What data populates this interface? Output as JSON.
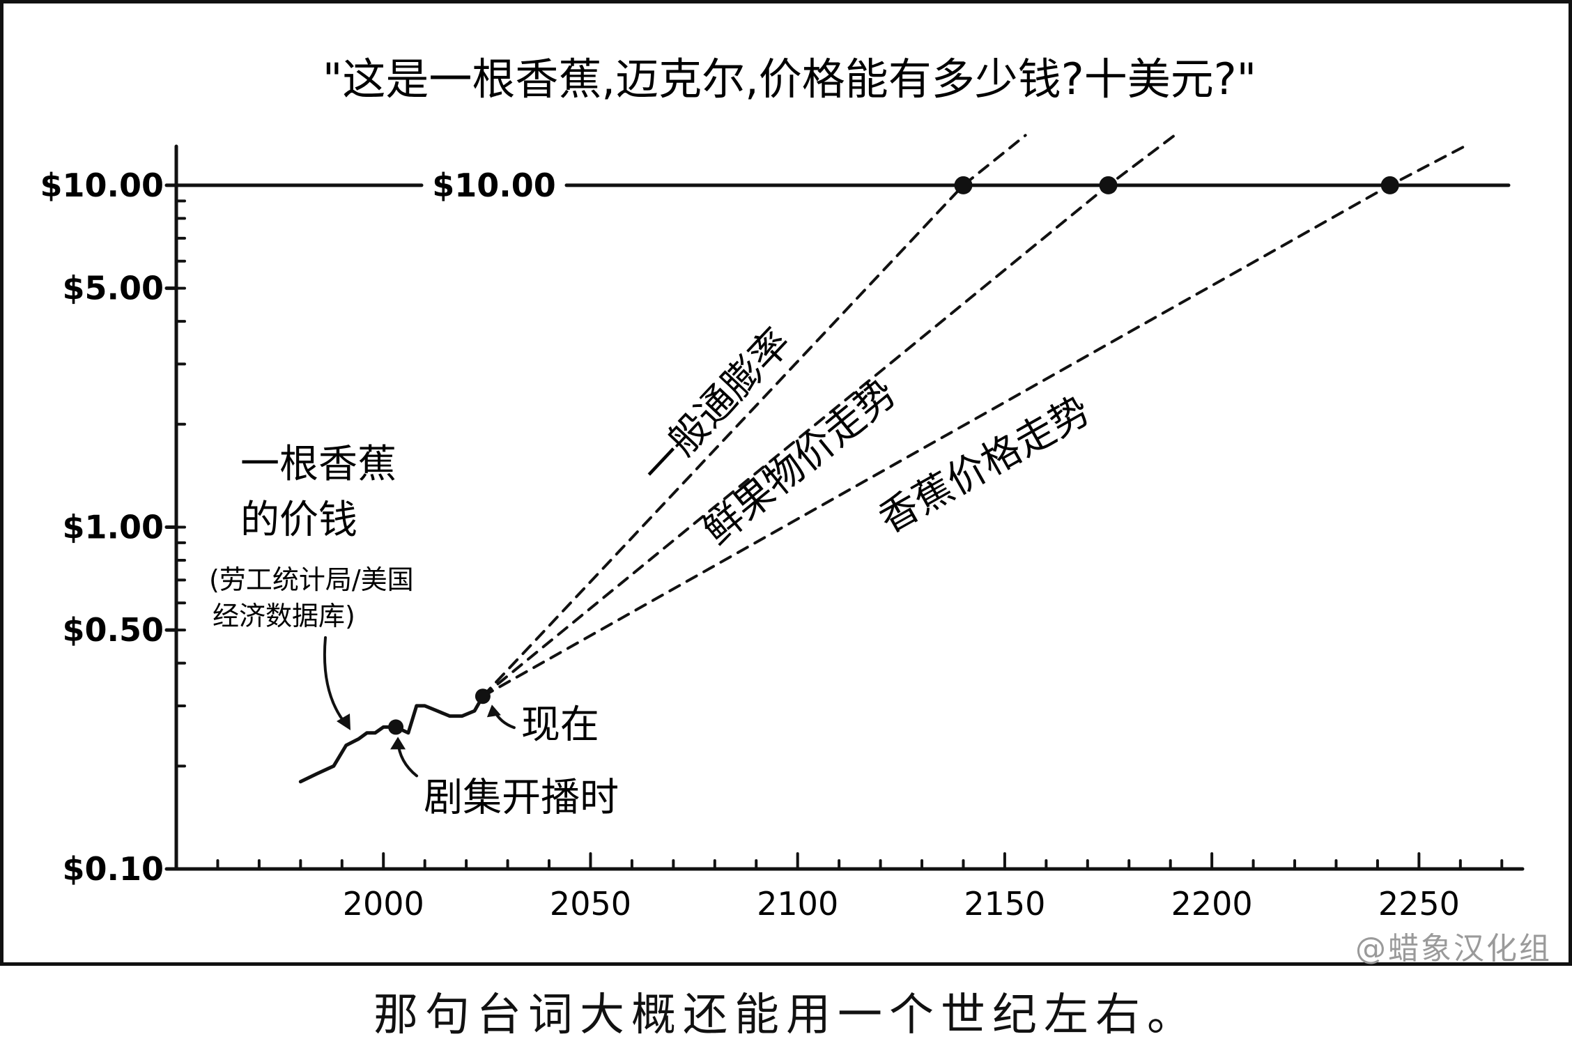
{
  "chart_data": {
    "type": "line",
    "title": "\"这是一根香蕉,迈克尔,价格能有多少钱?十美元?\"",
    "y_scale": "log",
    "ylim": [
      0.1,
      13
    ],
    "xlim": [
      1950,
      2275
    ],
    "x_ticks": [
      2000,
      2050,
      2100,
      2150,
      2200,
      2250
    ],
    "y_ticks": [
      {
        "value": 10,
        "label": "$10.00"
      },
      {
        "value": 5,
        "label": "$5.00"
      },
      {
        "value": 1,
        "label": "$1.00"
      },
      {
        "value": 0.5,
        "label": "$0.50"
      },
      {
        "value": 0.1,
        "label": "$0.10"
      }
    ],
    "grid": false,
    "reference_line": {
      "value": 10,
      "label": "$10.00"
    },
    "history": {
      "name_line1": "一根香蕉",
      "name_line2": "的价钱",
      "source_line1": "(劳工统计局/美国",
      "source_line2": "经济数据库)",
      "x": [
        1980,
        1984,
        1988,
        1991,
        1994,
        1996,
        1998,
        2000,
        2003,
        2006,
        2008,
        2010,
        2013,
        2016,
        2019,
        2022,
        2024
      ],
      "y": [
        0.18,
        0.19,
        0.2,
        0.23,
        0.24,
        0.25,
        0.25,
        0.26,
        0.26,
        0.25,
        0.3,
        0.3,
        0.29,
        0.28,
        0.28,
        0.29,
        0.32
      ]
    },
    "markers": [
      {
        "x": 2003,
        "y": 0.26,
        "label": "剧集开播时"
      },
      {
        "x": 2024,
        "y": 0.32,
        "label": "现在"
      }
    ],
    "series": [
      {
        "name": "一般通膨率",
        "x": [
          2024,
          2140,
          2155
        ],
        "y": [
          0.32,
          10,
          14
        ]
      },
      {
        "name": "鲜果物价走势",
        "x": [
          2024,
          2175,
          2191
        ],
        "y": [
          0.32,
          10,
          14
        ]
      },
      {
        "name": "香蕉价格走势",
        "x": [
          2024,
          2243,
          2261
        ],
        "y": [
          0.32,
          10,
          13
        ]
      }
    ],
    "intersections": [
      {
        "x": 2140,
        "y": 10
      },
      {
        "x": 2175,
        "y": 10
      },
      {
        "x": 2243,
        "y": 10
      }
    ]
  },
  "caption": "那句台词大概还能用一个世纪左右。",
  "watermark": "@蜡象汉化组"
}
